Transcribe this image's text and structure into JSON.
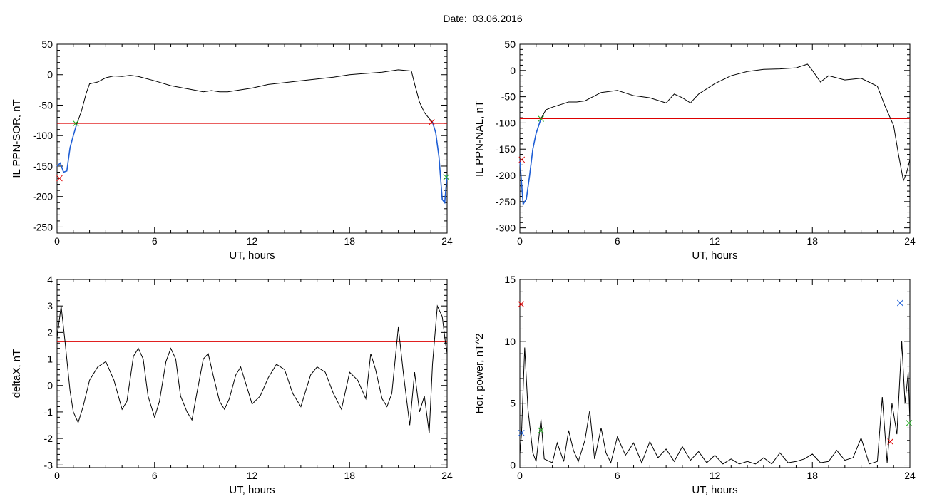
{
  "header": {
    "title": "Date:  03.06.2016"
  },
  "colors": {
    "axis": "#000000",
    "trace": "#000000",
    "threshold": "#dd0000",
    "highlight": "#1f5fd6",
    "marker_red": "#dd0000",
    "marker_green": "#22aa22",
    "marker_blue": "#1f5fd6"
  },
  "chart_data": [
    {
      "type": "line",
      "id": "sor",
      "xlabel": "UT, hours",
      "ylabel": "IL PPN-SOR, nT",
      "xlim": [
        0,
        24
      ],
      "ylim": [
        -260,
        50
      ],
      "xticks": [
        0,
        6,
        12,
        18,
        24
      ],
      "yticks": [
        -250,
        -200,
        -150,
        -100,
        -50,
        0,
        50
      ],
      "x": [
        0,
        0.2,
        0.4,
        0.6,
        0.8,
        1.0,
        1.2,
        1.5,
        1.8,
        2.0,
        2.5,
        3.0,
        3.5,
        4.0,
        4.5,
        5.0,
        6.0,
        7.0,
        8.0,
        9.0,
        9.5,
        10.0,
        10.5,
        11.0,
        12.0,
        13.0,
        14.0,
        15.0,
        16.0,
        17.0,
        18.0,
        19.0,
        20.0,
        21.0,
        21.8,
        22.0,
        22.3,
        22.6,
        22.9,
        23.1,
        23.3,
        23.5,
        23.7,
        23.85,
        24.0
      ],
      "y": [
        -150,
        -145,
        -160,
        -158,
        -120,
        -100,
        -82,
        -60,
        -30,
        -15,
        -12,
        -5,
        -2,
        -3,
        -1,
        -3,
        -10,
        -18,
        -23,
        -28,
        -26,
        -28,
        -28,
        -26,
        -22,
        -16,
        -13,
        -10,
        -7,
        -4,
        0,
        2,
        4,
        8,
        6,
        -15,
        -45,
        -62,
        -72,
        -78,
        -95,
        -135,
        -205,
        -210,
        -165
      ],
      "highlight_x": [
        0,
        0.2,
        0.4,
        0.6,
        0.8,
        1.0,
        1.2
      ],
      "highlight_y": [
        -150,
        -145,
        -160,
        -158,
        -120,
        -100,
        -82
      ],
      "highlight2_x": [
        23.1,
        23.3,
        23.5,
        23.7,
        23.85,
        24.0
      ],
      "highlight2_y": [
        -78,
        -95,
        -135,
        -205,
        -210,
        -165
      ],
      "threshold": -80,
      "markers": [
        {
          "x": 0.15,
          "y": -170,
          "color": "red"
        },
        {
          "x": 1.15,
          "y": -80,
          "color": "green"
        },
        {
          "x": 23.05,
          "y": -78,
          "color": "red"
        },
        {
          "x": 23.95,
          "y": -168,
          "color": "green"
        }
      ]
    },
    {
      "type": "line",
      "id": "nal",
      "xlabel": "UT, hours",
      "ylabel": "IL PPN-NAL, nT",
      "xlim": [
        0,
        24
      ],
      "ylim": [
        -310,
        50
      ],
      "xticks": [
        0,
        6,
        12,
        18,
        24
      ],
      "yticks": [
        -300,
        -250,
        -200,
        -150,
        -100,
        -50,
        0,
        50
      ],
      "x": [
        0,
        0.2,
        0.4,
        0.6,
        0.8,
        1.0,
        1.3,
        1.6,
        2.0,
        2.5,
        3.0,
        3.5,
        4.0,
        5.0,
        6.0,
        7.0,
        8.0,
        9.0,
        9.5,
        10.0,
        10.5,
        11.0,
        12.0,
        13.0,
        14.0,
        15.0,
        16.0,
        17.0,
        17.7,
        18.0,
        18.5,
        19.0,
        20.0,
        21.0,
        22.0,
        22.5,
        23.0,
        23.3,
        23.6,
        23.8,
        24.0
      ],
      "y": [
        -170,
        -255,
        -245,
        -200,
        -150,
        -120,
        -92,
        -75,
        -70,
        -65,
        -60,
        -60,
        -58,
        -42,
        -38,
        -48,
        -52,
        -62,
        -45,
        -52,
        -62,
        -45,
        -25,
        -10,
        -2,
        2,
        3,
        5,
        12,
        0,
        -22,
        -10,
        -18,
        -15,
        -30,
        -70,
        -105,
        -160,
        -210,
        -195,
        -170
      ],
      "highlight_x": [
        0,
        0.2,
        0.4,
        0.6,
        0.8,
        1.0,
        1.3
      ],
      "highlight_y": [
        -170,
        -255,
        -245,
        -200,
        -150,
        -120,
        -92
      ],
      "threshold": -92,
      "markers": [
        {
          "x": 0.12,
          "y": -170,
          "color": "red"
        },
        {
          "x": 1.3,
          "y": -92,
          "color": "green"
        }
      ]
    },
    {
      "type": "line",
      "id": "deltax",
      "xlabel": "UT, hours",
      "ylabel": "deltaX, nT",
      "xlim": [
        0,
        24
      ],
      "ylim": [
        -3.1,
        4
      ],
      "xticks": [
        0,
        6,
        12,
        18,
        24
      ],
      "yticks": [
        -3,
        -2,
        -1,
        0,
        1,
        2,
        3,
        4
      ],
      "x": [
        0,
        0.25,
        0.5,
        0.8,
        1.0,
        1.3,
        1.6,
        2.0,
        2.5,
        3.0,
        3.5,
        4.0,
        4.3,
        4.7,
        5.0,
        5.3,
        5.6,
        6.0,
        6.3,
        6.7,
        7.0,
        7.3,
        7.6,
        8.0,
        8.3,
        8.6,
        9.0,
        9.3,
        9.6,
        10.0,
        10.3,
        10.6,
        11.0,
        11.3,
        11.6,
        12.0,
        12.5,
        13.0,
        13.5,
        14.0,
        14.5,
        15.0,
        15.3,
        15.6,
        16.0,
        16.5,
        17.0,
        17.5,
        18.0,
        18.5,
        19.0,
        19.3,
        19.6,
        20.0,
        20.3,
        20.6,
        21.0,
        21.3,
        21.7,
        22.0,
        22.3,
        22.6,
        22.9,
        23.1,
        23.4,
        23.7,
        23.9,
        24.0
      ],
      "y": [
        1.8,
        3.0,
        1.6,
        -0.2,
        -1.0,
        -1.4,
        -0.8,
        0.2,
        0.7,
        0.9,
        0.2,
        -0.9,
        -0.6,
        1.1,
        1.4,
        1.0,
        -0.4,
        -1.2,
        -0.6,
        0.9,
        1.4,
        1.0,
        -0.4,
        -1.0,
        -1.3,
        -0.3,
        1.0,
        1.2,
        0.4,
        -0.6,
        -0.9,
        -0.5,
        0.4,
        0.7,
        0.1,
        -0.7,
        -0.4,
        0.3,
        0.8,
        0.6,
        -0.3,
        -0.8,
        -0.2,
        0.4,
        0.7,
        0.5,
        -0.3,
        -0.9,
        0.5,
        0.2,
        -0.5,
        1.2,
        0.6,
        -0.5,
        -0.8,
        -0.3,
        2.2,
        0.5,
        -1.5,
        0.5,
        -1.0,
        -0.4,
        -1.8,
        0.8,
        3.0,
        2.6,
        1.6,
        1.2
      ],
      "threshold": 1.65,
      "markers": []
    },
    {
      "type": "line",
      "id": "power",
      "xlabel": "UT, hours",
      "ylabel": "Hor. power, nT^2",
      "xlim": [
        0,
        24
      ],
      "ylim": [
        -0.2,
        15
      ],
      "xticks": [
        0,
        6,
        12,
        18,
        24
      ],
      "yticks": [
        0,
        5,
        10,
        15
      ],
      "x": [
        0,
        0.1,
        0.3,
        0.5,
        0.8,
        1.0,
        1.3,
        1.5,
        2.0,
        2.3,
        2.7,
        3.0,
        3.3,
        3.6,
        4.0,
        4.3,
        4.6,
        5.0,
        5.3,
        5.6,
        6.0,
        6.5,
        7.0,
        7.5,
        8.0,
        8.5,
        9.0,
        9.5,
        10.0,
        10.5,
        11.0,
        11.5,
        12.0,
        12.5,
        13.0,
        13.5,
        14.0,
        14.5,
        15.0,
        15.5,
        16.0,
        16.5,
        17.0,
        17.5,
        18.0,
        18.5,
        19.0,
        19.5,
        20.0,
        20.5,
        21.0,
        21.5,
        22.0,
        22.3,
        22.6,
        22.9,
        23.2,
        23.5,
        23.7,
        23.9,
        24.0
      ],
      "y": [
        0.9,
        2.5,
        9.5,
        4.5,
        1.0,
        0.3,
        3.7,
        0.5,
        0.2,
        1.8,
        0.3,
        2.8,
        1.2,
        0.3,
        2.0,
        4.4,
        0.5,
        3.0,
        1.0,
        0.2,
        2.3,
        0.8,
        1.8,
        0.2,
        1.9,
        0.6,
        1.3,
        0.3,
        1.5,
        0.4,
        1.1,
        0.2,
        0.8,
        0.1,
        0.5,
        0.1,
        0.3,
        0.1,
        0.6,
        0.1,
        1.0,
        0.2,
        0.3,
        0.5,
        0.9,
        0.2,
        0.3,
        1.2,
        0.4,
        0.6,
        2.2,
        0.1,
        0.3,
        5.5,
        0.2,
        5.0,
        2.5,
        10.0,
        5.0,
        7.5,
        3.5
      ],
      "threshold": null,
      "markers": [
        {
          "x": 0.08,
          "y": 13.0,
          "color": "red"
        },
        {
          "x": 0.1,
          "y": 2.6,
          "color": "blue"
        },
        {
          "x": 1.3,
          "y": 2.8,
          "color": "green"
        },
        {
          "x": 22.8,
          "y": 1.9,
          "color": "red"
        },
        {
          "x": 23.4,
          "y": 13.1,
          "color": "blue"
        },
        {
          "x": 23.95,
          "y": 3.4,
          "color": "green"
        }
      ]
    }
  ]
}
